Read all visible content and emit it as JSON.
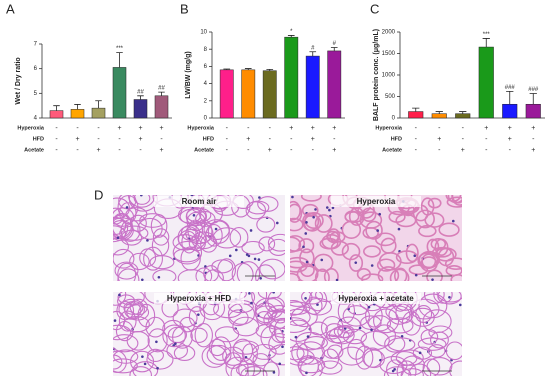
{
  "chart_data": [
    {
      "type": "bar",
      "panel": "A",
      "y_label": "Wet / Dry ratio",
      "ylim": [
        4,
        7
      ],
      "yticks": [
        4,
        5,
        6,
        7
      ],
      "categories": [
        null,
        null,
        null,
        null,
        null,
        null
      ],
      "values": [
        4.3,
        4.35,
        4.4,
        6.05,
        4.75,
        4.9
      ],
      "errors": [
        0.2,
        0.2,
        0.3,
        0.6,
        0.15,
        0.15
      ],
      "colors": [
        "#ff5a7a",
        "#ffa500",
        "#a4a060",
        "#3a8a60",
        "#3a2f8a",
        "#a05a7a"
      ],
      "annotations": [
        null,
        null,
        null,
        "***",
        "##",
        "##"
      ],
      "treatments": [
        {
          "name": "Hyperoxia",
          "signs": [
            "-",
            "-",
            "-",
            "+",
            "+",
            "+"
          ]
        },
        {
          "name": "HFD",
          "signs": [
            "-",
            "+",
            "-",
            "-",
            "+",
            "-"
          ]
        },
        {
          "name": "Acetate",
          "signs": [
            "-",
            "-",
            "+",
            "-",
            "-",
            "+"
          ]
        }
      ]
    },
    {
      "type": "bar",
      "panel": "B",
      "y_label": "LW/BW (mg/g)",
      "ylim": [
        0,
        10
      ],
      "yticks": [
        0,
        2,
        4,
        6,
        8,
        10
      ],
      "categories": [
        null,
        null,
        null,
        null,
        null,
        null
      ],
      "values": [
        5.6,
        5.6,
        5.5,
        9.4,
        7.2,
        7.8
      ],
      "errors": [
        0.1,
        0.15,
        0.15,
        0.2,
        0.5,
        0.4
      ],
      "colors": [
        "#ff1f8a",
        "#ff8c00",
        "#6b6b20",
        "#1a9a1a",
        "#1a1aff",
        "#9a1a9a"
      ],
      "annotations": [
        null,
        null,
        null,
        "*",
        "#",
        "#"
      ],
      "treatments": [
        {
          "name": "Hyperoxia",
          "signs": [
            "-",
            "-",
            "-",
            "+",
            "+",
            "+"
          ]
        },
        {
          "name": "HFD",
          "signs": [
            "-",
            "+",
            "-",
            "-",
            "+",
            "-"
          ]
        },
        {
          "name": "Acetate",
          "signs": [
            "-",
            "-",
            "+",
            "-",
            "-",
            "+"
          ]
        }
      ]
    },
    {
      "type": "bar",
      "panel": "C",
      "y_label": "BALF protein conc. (μg/mL)",
      "ylim": [
        0,
        2000
      ],
      "yticks": [
        0,
        500,
        1000,
        1500,
        2000
      ],
      "categories": [
        null,
        null,
        null,
        null,
        null,
        null
      ],
      "values": [
        150,
        100,
        100,
        1650,
        320,
        320
      ],
      "errors": [
        80,
        50,
        50,
        200,
        300,
        250
      ],
      "colors": [
        "#ff1f4a",
        "#ff8c00",
        "#6b6b20",
        "#1a9a1a",
        "#1a1aff",
        "#9a1a9a"
      ],
      "annotations": [
        null,
        null,
        null,
        "***",
        "###",
        "###"
      ],
      "treatments": [
        {
          "name": "Hyperoxia",
          "signs": [
            "-",
            "-",
            "-",
            "+",
            "+",
            "+"
          ]
        },
        {
          "name": "HFD",
          "signs": [
            "-",
            "+",
            "-",
            "-",
            "+",
            "-"
          ]
        },
        {
          "name": "Acetate",
          "signs": [
            "-",
            "-",
            "+",
            "-",
            "-",
            "+"
          ]
        }
      ]
    }
  ],
  "histology": {
    "panel": "D",
    "captions": [
      "Room air",
      "Hyperoxia",
      "Hyperoxia + HFD",
      "Hyperoxia + acetate"
    ]
  }
}
